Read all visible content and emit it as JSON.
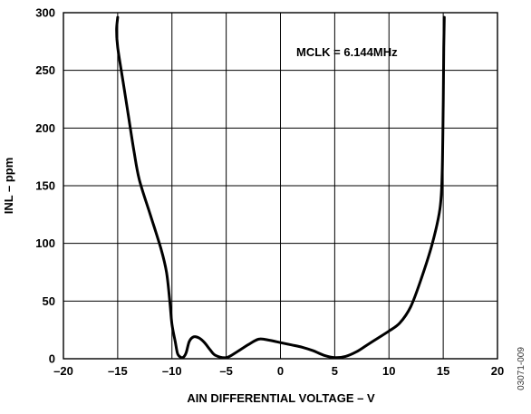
{
  "chart_data": {
    "type": "line",
    "title": "",
    "xlabel": "AIN DIFFERENTIAL VOLTAGE – V",
    "ylabel": "INL – ppm",
    "xlim": [
      -20,
      20
    ],
    "ylim": [
      0,
      300
    ],
    "xticks": [
      -20,
      -15,
      -10,
      -5,
      0,
      5,
      10,
      15,
      20
    ],
    "yticks": [
      0,
      50,
      100,
      150,
      200,
      250,
      300
    ],
    "xtick_labels": [
      "–20",
      "–15",
      "–10",
      "–5",
      "0",
      "5",
      "10",
      "15",
      "20"
    ],
    "ytick_labels": [
      "0",
      "50",
      "100",
      "150",
      "200",
      "250",
      "300"
    ],
    "grid": true,
    "annotation": "MCLK = 6.144MHz",
    "figure_code": "03071-009",
    "series": [
      {
        "values": [
          [
            -15.0,
            296
          ],
          [
            -15.1,
            285
          ],
          [
            -15.0,
            270
          ],
          [
            -14.5,
            240
          ],
          [
            -14.0,
            210
          ],
          [
            -13.5,
            180
          ],
          [
            -13.0,
            155
          ],
          [
            -12.0,
            125
          ],
          [
            -11.0,
            95
          ],
          [
            -10.5,
            75
          ],
          [
            -10.2,
            50
          ],
          [
            -10.0,
            30
          ],
          [
            -9.7,
            15
          ],
          [
            -9.5,
            5
          ],
          [
            -9.3,
            2
          ],
          [
            -9.0,
            1
          ],
          [
            -8.7,
            5
          ],
          [
            -8.4,
            15
          ],
          [
            -8.0,
            19
          ],
          [
            -7.5,
            18
          ],
          [
            -7.0,
            14
          ],
          [
            -6.5,
            8
          ],
          [
            -6.0,
            3
          ],
          [
            -5.0,
            1
          ],
          [
            -4.0,
            6
          ],
          [
            -3.0,
            12
          ],
          [
            -2.0,
            17
          ],
          [
            -1.0,
            16
          ],
          [
            0.0,
            14
          ],
          [
            1.0,
            12
          ],
          [
            2.0,
            10
          ],
          [
            3.0,
            7
          ],
          [
            4.0,
            3
          ],
          [
            5.0,
            1
          ],
          [
            6.0,
            2
          ],
          [
            7.0,
            6
          ],
          [
            8.0,
            12
          ],
          [
            9.0,
            18
          ],
          [
            10.0,
            24
          ],
          [
            11.0,
            31
          ],
          [
            12.0,
            45
          ],
          [
            13.0,
            70
          ],
          [
            14.0,
            100
          ],
          [
            14.7,
            130
          ],
          [
            14.9,
            160
          ],
          [
            15.0,
            220
          ],
          [
            15.05,
            270
          ],
          [
            15.1,
            296
          ]
        ]
      }
    ]
  }
}
